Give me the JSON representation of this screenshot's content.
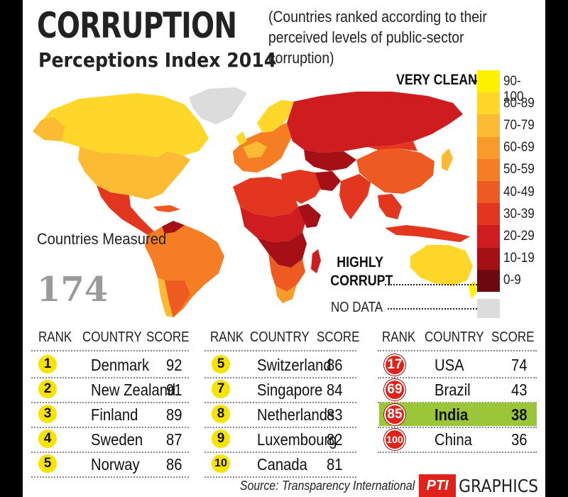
{
  "header": {
    "title": "CORRUPTION",
    "subtitle": "Perceptions Index 2014",
    "description": "(Countries ranked according to their perceived levels of public-sector corruption)"
  },
  "stats": {
    "label": "Countries Measured",
    "count": "174"
  },
  "legend": {
    "top_label": "VERY CLEAN",
    "bottom_label": "HIGHLY CORRUPT",
    "no_data_label": "NO DATA",
    "no_data_color": "#dcdcdc",
    "bins": [
      {
        "range": "90-100",
        "color": "#fff200"
      },
      {
        "range": "80-89",
        "color": "#ffd72a"
      },
      {
        "range": "70-79",
        "color": "#fdba33"
      },
      {
        "range": "60-69",
        "color": "#f99b2b"
      },
      {
        "range": "50-59",
        "color": "#f57d24"
      },
      {
        "range": "40-49",
        "color": "#ee5b22"
      },
      {
        "range": "30-39",
        "color": "#e3361e"
      },
      {
        "range": "20-29",
        "color": "#cf1c1f"
      },
      {
        "range": "10-19",
        "color": "#a50f16"
      },
      {
        "range": "0-9",
        "color": "#6d0710"
      }
    ]
  },
  "tables": [
    {
      "headers": [
        "RANK",
        "COUNTRY",
        "SCORE"
      ],
      "rows": [
        {
          "rank": "1",
          "country": "Denmark",
          "score": "92"
        },
        {
          "rank": "2",
          "country": "New Zealand",
          "score": "91"
        },
        {
          "rank": "3",
          "country": "Finland",
          "score": "89"
        },
        {
          "rank": "4",
          "country": "Sweden",
          "score": "87"
        },
        {
          "rank": "5",
          "country": "Norway",
          "score": "86"
        }
      ]
    },
    {
      "headers": [
        "RANK",
        "COUNTRY",
        "SCORE"
      ],
      "rows": [
        {
          "rank": "5",
          "country": "Switzerland",
          "score": "86"
        },
        {
          "rank": "7",
          "country": "Singapore",
          "score": "84"
        },
        {
          "rank": "8",
          "country": "Netherlands",
          "score": "83"
        },
        {
          "rank": "9",
          "country": "Luxembourg",
          "score": "82"
        },
        {
          "rank": "10",
          "country": "Canada",
          "score": "81"
        }
      ]
    },
    {
      "headers": [
        "RANK",
        "COUNTRY",
        "SCORE"
      ],
      "rows": [
        {
          "rank": "17",
          "country": "USA",
          "score": "74"
        },
        {
          "rank": "69",
          "country": "Brazil",
          "score": "43"
        },
        {
          "rank": "85",
          "country": "India",
          "score": "38",
          "highlight": true
        },
        {
          "rank": "100",
          "country": "China",
          "score": "36"
        }
      ]
    }
  ],
  "footer": {
    "source": "Source: Transparency International",
    "logo_text": "PTI",
    "graphics": "GRAPHICS"
  },
  "colors": {
    "highlight_row": "#9cc63a",
    "badge_yellow": "#f6e400",
    "badge_red": "#e0221a"
  }
}
